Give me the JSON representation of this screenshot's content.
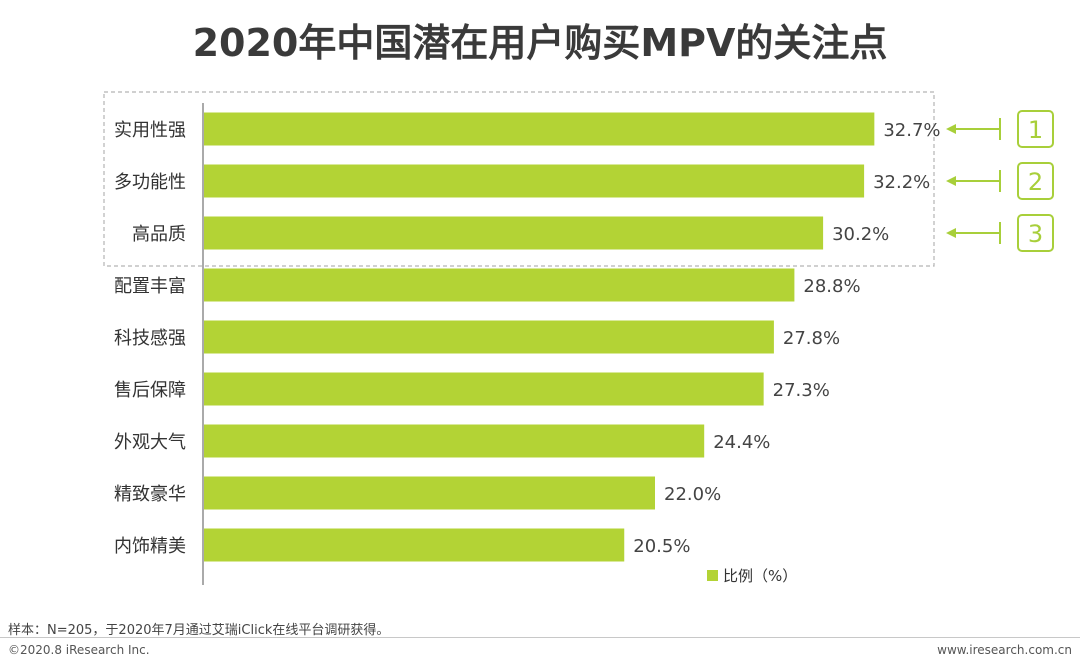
{
  "colors": {
    "bar": "#b3d335",
    "badge": "#a8cf3a",
    "axis": "#555555",
    "frame": "#b5b5b5"
  },
  "chart_data": {
    "type": "bar",
    "orientation": "horizontal",
    "title": "2020年中国潜在用户购买MPV的关注点",
    "categories": [
      "实用性强",
      "多功能性",
      "高品质",
      "配置丰富",
      "科技感强",
      "售后保障",
      "外观大气",
      "精致豪华",
      "内饰精美"
    ],
    "values": [
      32.7,
      32.2,
      30.2,
      28.8,
      27.8,
      27.3,
      24.4,
      22.0,
      20.5
    ],
    "value_labels": [
      "32.7%",
      "32.2%",
      "30.2%",
      "28.8%",
      "27.8%",
      "27.3%",
      "24.4%",
      "22.0%",
      "20.5%"
    ],
    "xlim": [
      0,
      33
    ],
    "legend": {
      "label": "比例（%）",
      "position": "bottom-right"
    },
    "highlight": {
      "top_count": 3,
      "rank_labels": [
        "1",
        "2",
        "3"
      ]
    }
  },
  "footer": {
    "note": "样本：N=205，于2020年7月通过艾瑞iClick在线平台调研获得。",
    "copyright": "©2020.8 iResearch Inc.",
    "site": "www.iresearch.com.cn"
  }
}
